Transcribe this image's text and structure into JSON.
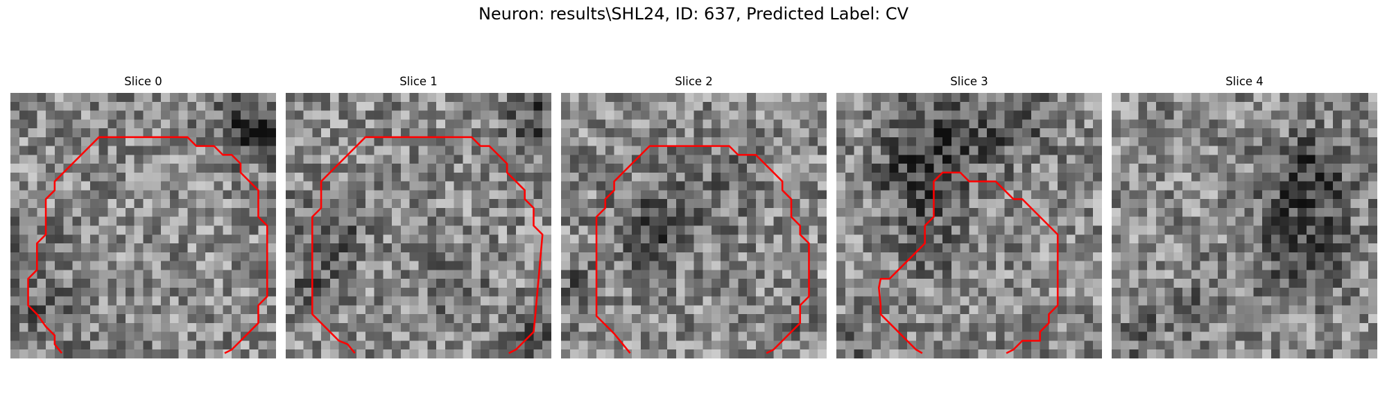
{
  "figure": {
    "title": "Neuron: results\\SHL24, ID: 637, Predicted Label: CV"
  },
  "panels": [
    {
      "title": "Slice 0"
    },
    {
      "title": "Slice 1"
    },
    {
      "title": "Slice 2"
    },
    {
      "title": "Slice 3"
    },
    {
      "title": "Slice 4"
    }
  ],
  "colors": {
    "contour": "#ff0000",
    "colormap": "gray"
  }
}
